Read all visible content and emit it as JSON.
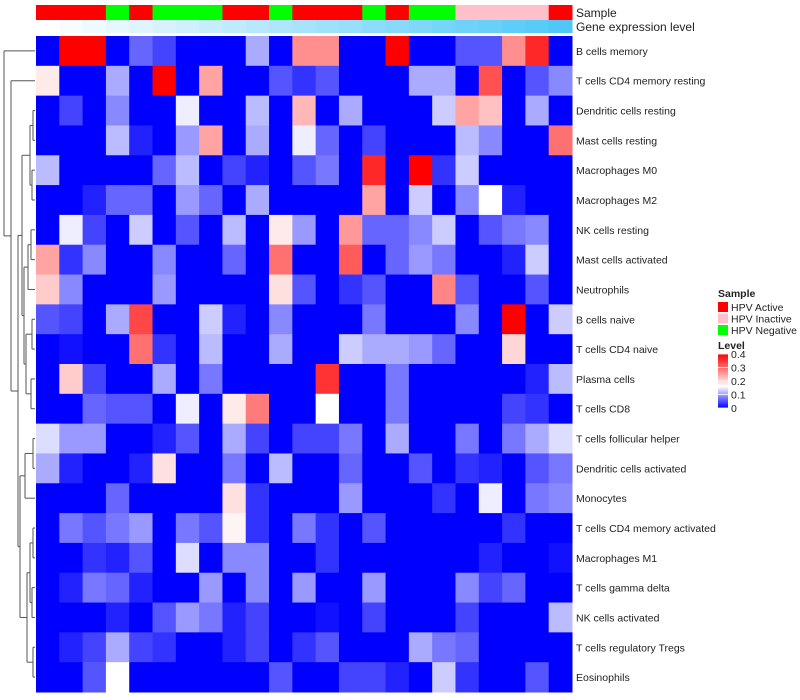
{
  "chart_data": {
    "type": "heatmap",
    "column_annotations": {
      "sample_title": "Sample",
      "gene_title": "Gene expression level",
      "sample_groups": [
        "HPV Active",
        "HPV Active",
        "HPV Active",
        "HPV Negative",
        "HPV Active",
        "HPV Negative",
        "HPV Negative",
        "HPV Negative",
        "HPV Active",
        "HPV Active",
        "HPV Negative",
        "HPV Active",
        "HPV Active",
        "HPV Active",
        "HPV Negative",
        "HPV Active",
        "HPV Negative",
        "HPV Negative",
        "HPV Inactive",
        "HPV Inactive",
        "HPV Inactive",
        "HPV Inactive",
        "HPV Active"
      ],
      "gene_expression_level": [
        0.0,
        0.05,
        0.09,
        0.14,
        0.18,
        0.23,
        0.27,
        0.32,
        0.36,
        0.41,
        0.45,
        0.5,
        0.55,
        0.59,
        0.64,
        0.68,
        0.73,
        0.77,
        0.82,
        0.86,
        0.91,
        0.95,
        1.0
      ]
    },
    "rows": [
      "B cells memory",
      "T cells CD4 memory resting",
      "Dendritic cells resting",
      "Mast cells resting",
      "Macrophages M0",
      "Macrophages M2",
      "NK cells resting",
      "Mast cells activated",
      "Neutrophils",
      "B cells naive",
      "T cells CD4 naive",
      "Plasma cells",
      "T cells CD8",
      "T cells follicular helper",
      "Dendritic cells activated",
      "Monocytes",
      "T cells CD4 memory activated",
      "Macrophages M1",
      "T cells gamma delta",
      "NK cells activated",
      "T cells regulatory  Tregs",
      "Eosinophils"
    ],
    "values": [
      [
        0,
        0.4,
        0.4,
        0,
        0.06,
        0.04,
        0,
        0,
        0,
        0.1,
        0,
        0.26,
        0.26,
        0,
        0,
        0.4,
        0,
        0,
        0.05,
        0.05,
        0.26,
        0.36,
        0
      ],
      [
        0.17,
        0,
        0,
        0.1,
        0,
        0.4,
        0,
        0.24,
        0,
        0,
        0.05,
        0.03,
        0.05,
        0,
        0,
        0,
        0.1,
        0.1,
        0,
        0.32,
        0,
        0.05,
        0.08
      ],
      [
        0,
        0.04,
        0,
        0.08,
        0,
        0,
        0.14,
        0,
        0,
        0.11,
        0,
        0.22,
        0,
        0.1,
        0,
        0,
        0,
        0.12,
        0.24,
        0.21,
        0,
        0.1,
        0
      ],
      [
        0,
        0,
        0,
        0.11,
        0.02,
        0,
        0.09,
        0.24,
        0,
        0.1,
        0,
        0.14,
        0.06,
        0,
        0.04,
        0,
        0,
        0,
        0.11,
        0.08,
        0,
        0,
        0.29
      ],
      [
        0.11,
        0,
        0,
        0,
        0,
        0.06,
        0.11,
        0,
        0.04,
        0.02,
        0,
        0.05,
        0.07,
        0,
        0.36,
        0,
        0.4,
        0.03,
        0.12,
        0,
        0,
        0,
        0
      ],
      [
        0,
        0,
        0.02,
        0.06,
        0.06,
        0,
        0.09,
        0.06,
        0,
        0.1,
        0,
        0,
        0,
        0,
        0.24,
        0,
        0.12,
        0,
        0.08,
        0.15,
        0.02,
        0,
        0
      ],
      [
        0,
        0.14,
        0.04,
        0,
        0.12,
        0,
        0.05,
        0,
        0.11,
        0,
        0.17,
        0.09,
        0,
        0.25,
        0.06,
        0.06,
        0.08,
        0.12,
        0,
        0.05,
        0.07,
        0.08,
        0
      ],
      [
        0.24,
        0.03,
        0.08,
        0,
        0,
        0.08,
        0,
        0,
        0.06,
        0,
        0.29,
        0,
        0,
        0.31,
        0,
        0.06,
        0.09,
        0.07,
        0,
        0,
        0.02,
        0.12,
        0
      ],
      [
        0.2,
        0.08,
        0,
        0,
        0,
        0.09,
        0,
        0,
        0,
        0,
        0.18,
        0.05,
        0,
        0.03,
        0.05,
        0,
        0,
        0.27,
        0.05,
        0,
        0,
        0.05,
        0
      ],
      [
        0.05,
        0.04,
        0,
        0.1,
        0.33,
        0,
        0,
        0.12,
        0.02,
        0,
        0.08,
        0,
        0,
        0,
        0.07,
        0,
        0,
        0,
        0.08,
        0,
        0.4,
        0,
        0.12
      ],
      [
        0,
        0.01,
        0,
        0,
        0.29,
        0.03,
        0,
        0.11,
        0,
        0,
        0.1,
        0,
        0,
        0.12,
        0.1,
        0.1,
        0.09,
        0.06,
        0,
        0,
        0.19,
        0,
        0
      ],
      [
        0,
        0.2,
        0.04,
        0,
        0,
        0.1,
        0,
        0.07,
        0,
        0,
        0,
        0,
        0.35,
        0,
        0,
        0.07,
        0,
        0,
        0,
        0,
        0,
        0.02,
        0.11
      ],
      [
        0,
        0,
        0.06,
        0.05,
        0.05,
        0,
        0.14,
        0,
        0.17,
        0.28,
        0,
        0,
        0.15,
        0,
        0,
        0.07,
        0,
        0,
        0,
        0,
        0.04,
        0.03,
        0
      ],
      [
        0.13,
        0.09,
        0.09,
        0,
        0,
        0.02,
        0.05,
        0,
        0.1,
        0.04,
        0,
        0.04,
        0.04,
        0.07,
        0,
        0.1,
        0,
        0,
        0.07,
        0,
        0.07,
        0.1,
        0.13
      ],
      [
        0.1,
        0.02,
        0,
        0,
        0.02,
        0.18,
        0,
        0,
        0.07,
        0,
        0.11,
        0,
        0,
        0.06,
        0,
        0,
        0.05,
        0,
        0.03,
        0.02,
        0,
        0.05,
        0.07
      ],
      [
        0,
        0,
        0,
        0.06,
        0,
        0,
        0,
        0,
        0.18,
        0.03,
        0,
        0,
        0,
        0.09,
        0,
        0,
        0,
        0.03,
        0,
        0.14,
        0,
        0.07,
        0.08
      ],
      [
        0,
        0.07,
        0.05,
        0.07,
        0.09,
        0,
        0.07,
        0.05,
        0.16,
        0.03,
        0,
        0.07,
        0.03,
        0,
        0.05,
        0,
        0,
        0,
        0,
        0,
        0.03,
        0,
        0
      ],
      [
        0,
        0,
        0.03,
        0.02,
        0.05,
        0,
        0.13,
        0,
        0.08,
        0.08,
        0,
        0,
        0.03,
        0,
        0,
        0,
        0,
        0,
        0,
        0.02,
        0,
        0,
        0.01
      ],
      [
        0,
        0.02,
        0.07,
        0.06,
        0.02,
        0,
        0,
        0.09,
        0,
        0.08,
        0,
        0.09,
        0,
        0,
        0.09,
        0,
        0,
        0,
        0.08,
        0.04,
        0.06,
        0,
        0
      ],
      [
        0,
        0,
        0,
        0.02,
        0,
        0.05,
        0.09,
        0.07,
        0.02,
        0.04,
        0,
        0,
        0.01,
        0,
        0.04,
        0,
        0,
        0,
        0.04,
        0,
        0,
        0,
        0.11
      ],
      [
        0,
        0.02,
        0.04,
        0.1,
        0.04,
        0.03,
        0,
        0,
        0.02,
        0.04,
        0,
        0.03,
        0.05,
        0,
        0,
        0,
        0.1,
        0.07,
        0.06,
        0,
        0,
        0,
        0
      ],
      [
        0,
        0,
        0.05,
        0.15,
        0,
        0,
        0,
        0,
        0,
        0,
        0.05,
        0,
        0,
        0.04,
        0.04,
        0.02,
        0,
        0.12,
        0.03,
        0,
        0,
        0.05,
        0
      ]
    ],
    "color_scale": {
      "low": "#0000ff",
      "mid": "#ffffff",
      "high": "#ff0000",
      "range": [
        0,
        0.4
      ]
    },
    "legend": {
      "sample_title": "Sample",
      "sample_entries": [
        {
          "label": "HPV Active",
          "color": "#ff0000"
        },
        {
          "label": "HPV Inactive",
          "color": "#ffc0cb"
        },
        {
          "label": "HPV Negative",
          "color": "#00ff00"
        }
      ],
      "level_title": "Level",
      "level_ticks": [
        "0.4",
        "0.3",
        "0.2",
        "0.1",
        "0"
      ],
      "placement": "right"
    },
    "gene_color": {
      "low": "#ffffff",
      "high": "#4fc8f8"
    }
  }
}
